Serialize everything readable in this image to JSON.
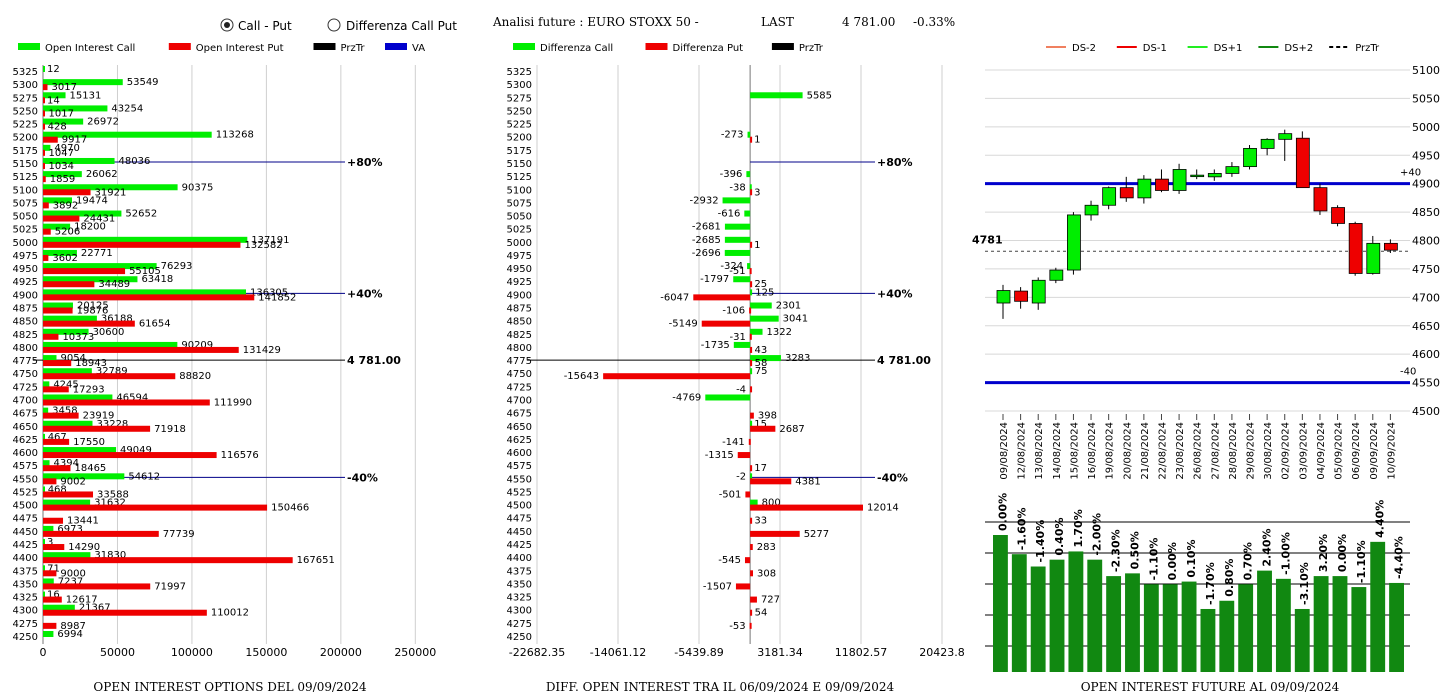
{
  "header": {
    "radio_call_put": "Call - Put",
    "radio_diff": "Differenza Call Put",
    "title": "Analisi future : EURO STOXX 50 -",
    "last_label": "LAST",
    "last_value": "4 781.00",
    "change": "-0.33%"
  },
  "colors": {
    "green": "#00ee00",
    "red": "#ee0000",
    "dark_green": "#118811",
    "blue": "#0000cc",
    "black": "#000000"
  },
  "chart_data": [
    {
      "type": "bar",
      "orientation": "horizontal",
      "title": "OPEN INTEREST OPTIONS DEL 09/09/2024",
      "legend": [
        "Open Interest Call",
        "Open Interest Put",
        "PrzTr",
        "VA"
      ],
      "x_ticks": [
        "0",
        "50000",
        "100000",
        "150000",
        "200000",
        "250000"
      ],
      "xlim": [
        0,
        280000
      ],
      "strikes": [
        5325,
        5300,
        5275,
        5250,
        5225,
        5200,
        5175,
        5150,
        5125,
        5100,
        5075,
        5050,
        5025,
        5000,
        4975,
        4950,
        4925,
        4900,
        4875,
        4850,
        4825,
        4800,
        4775,
        4750,
        4725,
        4700,
        4675,
        4650,
        4625,
        4600,
        4575,
        4550,
        4525,
        4500,
        4475,
        4450,
        4425,
        4400,
        4375,
        4350,
        4325,
        4300,
        4275,
        4250
      ],
      "call": [
        12,
        53549,
        15131,
        43254,
        26972,
        113268,
        4970,
        48036,
        26062,
        90375,
        19474,
        52652,
        18200,
        137191,
        22771,
        76293,
        63418,
        136305,
        20125,
        36188,
        30600,
        90209,
        9054,
        32789,
        4245,
        46594,
        3458,
        33228,
        467,
        49049,
        4394,
        54612,
        468,
        31632,
        null,
        6973,
        3,
        31830,
        71,
        7237,
        16,
        21367,
        null,
        6994
      ],
      "put": [
        null,
        3017,
        14,
        1017,
        428,
        9917,
        1047,
        1034,
        1859,
        31921,
        3892,
        24431,
        5206,
        132582,
        3602,
        55105,
        34489,
        141852,
        19876,
        61654,
        10373,
        131429,
        18943,
        88820,
        17293,
        111990,
        23919,
        71918,
        17550,
        116576,
        18465,
        9002,
        33588,
        150466,
        13441,
        77739,
        14290,
        167651,
        9000,
        71997,
        12617,
        110012,
        8987,
        null
      ],
      "annotations": [
        {
          "label": "+80%",
          "strike": 5150
        },
        {
          "label": "+40%",
          "strike": 4900
        },
        {
          "label": "4 781.00",
          "strike": 4775
        },
        {
          "label": "-40%",
          "strike": 4550
        }
      ]
    },
    {
      "type": "bar",
      "orientation": "horizontal",
      "title": "DIFF. OPEN INTEREST TRA IL 06/09/2024 E 09/09/2024",
      "legend": [
        "Differenza Call",
        "Differenza Put",
        "PrzTr"
      ],
      "x_ticks": [
        "-22682.35",
        "-14061.12",
        "-5439.89",
        "3181.34",
        "11802.57",
        "20423.8"
      ],
      "xlim": [
        -22682.35,
        20423.8
      ],
      "strikes": [
        5325,
        5300,
        5275,
        5250,
        5225,
        5200,
        5175,
        5150,
        5125,
        5100,
        5075,
        5050,
        5025,
        5000,
        4975,
        4950,
        4925,
        4900,
        4875,
        4850,
        4825,
        4800,
        4775,
        4750,
        4725,
        4700,
        4675,
        4650,
        4625,
        4600,
        4575,
        4550,
        4525,
        4500,
        4475,
        4450,
        4425,
        4400,
        4375,
        4350,
        4325,
        4300,
        4275,
        4250
      ],
      "call": [
        null,
        null,
        5585,
        null,
        null,
        -273,
        null,
        null,
        -396,
        -38,
        -2932,
        -616,
        -2681,
        -2685,
        -2696,
        -324,
        -1797,
        125,
        2301,
        3041,
        1322,
        -1735,
        3283,
        75,
        null,
        -4769,
        null,
        15,
        null,
        null,
        null,
        -2,
        null,
        800,
        null,
        null,
        null,
        null,
        null,
        null,
        null,
        null,
        null,
        null
      ],
      "put": [
        null,
        null,
        null,
        null,
        null,
        1,
        null,
        null,
        null,
        3,
        null,
        null,
        null,
        1,
        null,
        -51,
        25,
        -6047,
        -106,
        -5149,
        -31,
        43,
        58,
        -15643,
        -4,
        null,
        398,
        2687,
        -141,
        -1315,
        17,
        4381,
        -501,
        12014,
        33,
        5277,
        283,
        -545,
        308,
        -1507,
        727,
        54,
        -53,
        null
      ],
      "annotations": [
        {
          "label": "+80%",
          "strike": 5150
        },
        {
          "label": "+40%",
          "strike": 4900
        },
        {
          "label": "4 781.00",
          "strike": 4775
        },
        {
          "label": "-40%",
          "strike": 4550
        }
      ]
    },
    {
      "type": "candlestick",
      "legend": [
        "DS-2",
        "DS-1",
        "DS+1",
        "DS+2",
        "PrzTr"
      ],
      "y_ticks": [
        "5100",
        "5050",
        "5000",
        "4950",
        "4900",
        "4850",
        "4800",
        "4750",
        "4700",
        "4650",
        "4600",
        "4550",
        "4500"
      ],
      "ylim": [
        4500,
        5100
      ],
      "last_label": "4781",
      "last": 4781,
      "bands": [
        {
          "value": 4900,
          "label": "+40"
        },
        {
          "value": 4550,
          "label": "-40"
        }
      ],
      "dates": [
        "09/08/2024",
        "12/08/2024",
        "13/08/2024",
        "14/08/2024",
        "15/08/2024",
        "16/08/2024",
        "19/08/2024",
        "20/08/2024",
        "21/08/2024",
        "22/08/2024",
        "23/08/2024",
        "26/08/2024",
        "27/08/2024",
        "28/08/2024",
        "29/08/2024",
        "30/08/2024",
        "02/09/2024",
        "03/09/2024",
        "04/09/2024",
        "05/09/2024",
        "06/09/2024",
        "09/09/2024",
        "10/09/2024"
      ],
      "ohlc": [
        [
          4690,
          4722,
          4662,
          4712
        ],
        [
          4711,
          4718,
          4680,
          4693
        ],
        [
          4690,
          4735,
          4678,
          4730
        ],
        [
          4730,
          4752,
          4725,
          4748
        ],
        [
          4748,
          4850,
          4740,
          4845
        ],
        [
          4845,
          4870,
          4835,
          4862
        ],
        [
          4862,
          4895,
          4855,
          4893
        ],
        [
          4893,
          4912,
          4868,
          4875
        ],
        [
          4875,
          4915,
          4865,
          4908
        ],
        [
          4908,
          4925,
          4885,
          4888
        ],
        [
          4888,
          4935,
          4882,
          4925
        ],
        [
          4915,
          4925,
          4908,
          4915
        ],
        [
          4912,
          4925,
          4905,
          4918
        ],
        [
          4918,
          4938,
          4912,
          4930
        ],
        [
          4930,
          4968,
          4925,
          4962
        ],
        [
          4962,
          4980,
          4950,
          4978
        ],
        [
          4978,
          4995,
          4940,
          4988
        ],
        [
          4980,
          4992,
          4895,
          4893
        ],
        [
          4893,
          4900,
          4845,
          4852
        ],
        [
          4858,
          4862,
          4825,
          4830
        ],
        [
          4830,
          4833,
          4738,
          4742
        ],
        [
          4742,
          4808,
          4740,
          4795
        ],
        [
          4795,
          4802,
          4778,
          4783
        ]
      ]
    },
    {
      "type": "bar",
      "title": "OPEN INTEREST FUTURE AL 09/09/2024",
      "values": [
        100,
        86,
        77,
        82,
        88,
        82,
        70,
        72,
        64,
        64,
        66,
        46,
        52,
        64,
        74,
        68,
        46,
        70,
        70,
        62,
        95,
        65
      ],
      "labels": [
        "0.00%",
        "-1.60%",
        "-1.40%",
        "0.40%",
        "1.70%",
        "-2.00%",
        "-2.30%",
        "0.50%",
        "-1.10%",
        "0.00%",
        "0.10%",
        "-1.70%",
        "0.80%",
        "0.70%",
        "2.40%",
        "-1.00%",
        "-3.10%",
        "3.20%",
        "0.00%",
        "-1.10%",
        "4.40%",
        "-4.40%"
      ]
    }
  ]
}
